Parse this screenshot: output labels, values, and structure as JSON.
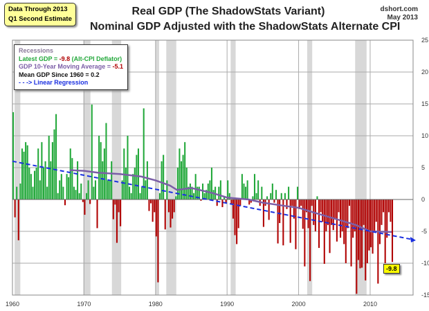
{
  "note": {
    "line1": "Data Through 2013",
    "line2": "Q1 Second Estimate"
  },
  "source": {
    "site": "dshort.com",
    "date": "May 2013"
  },
  "chart_data": {
    "type": "bar",
    "title": "Real GDP (The ShadowStats Variant)",
    "subtitle": "Nominal GDP Adjusted with the ShadowStats Alternate CPI",
    "xlabel": "",
    "ylabel": "",
    "xlim": [
      1960,
      2016
    ],
    "ylim": [
      -15,
      25
    ],
    "xticks": [
      "1960",
      "1970",
      "1980",
      "1990",
      "2000",
      "2010"
    ],
    "yticks": [
      "25",
      "20",
      "15",
      "10",
      "5",
      "0",
      "-5",
      "-10",
      "-15"
    ],
    "grid": true,
    "legend": {
      "placement": "top-left",
      "recessions": "Recessions",
      "latest_prefix": "Latest GDP = ",
      "latest_value": "-9.8",
      "latest_suffix": " (Alt-CPI Deflator)",
      "ma_prefix": "GDP 10-Year Moving Average = ",
      "ma_value": "-5.1",
      "mean": "Mean GDP  Since 1960 = 0.2",
      "regression": "- - -> Linear Regression"
    },
    "latest_label": "-9.8",
    "start_quarter": "1960Q1",
    "values": [
      13.7,
      -2.8,
      2.0,
      -6.4,
      2.5,
      8.0,
      7.5,
      9.0,
      8.5,
      5.0,
      4.0,
      2.0,
      4.5,
      5.0,
      8.0,
      3.0,
      9.0,
      5.0,
      6.0,
      2.0,
      10.0,
      6.0,
      9.0,
      11.0,
      13.4,
      1.0,
      3.0,
      4.0,
      2.0,
      -0.9,
      4.0,
      3.5,
      8.0,
      6.5,
      2.0,
      1.5,
      6.0,
      1.0,
      2.5,
      -0.4,
      -2.4,
      1.0,
      3.0,
      -0.7,
      14.9,
      2.0,
      3.0,
      -4.5,
      10.0,
      9.0,
      6.0,
      8.0,
      12.0,
      3.0,
      3.0,
      6.0,
      -3.1,
      -0.8,
      -6.8,
      -2.0,
      -4.2,
      3.0,
      8.0,
      5.0,
      10.0,
      2.0,
      1.0,
      4.0,
      5.0,
      7.0,
      8.0,
      1.0,
      2.0,
      14.3,
      3.0,
      6.0,
      -1.8,
      -0.6,
      -3.5,
      -2.0,
      -5.8,
      -13.0,
      1.0,
      6.0,
      7.0,
      -4.7,
      3.0,
      -2.0,
      -4.4,
      -3.0,
      -2.0,
      0.5,
      5.0,
      8.0,
      6.0,
      7.0,
      9.0,
      5.0,
      2.0,
      2.5,
      2.0,
      1.0,
      4.0,
      2.0,
      2.0,
      -0.2,
      2.5,
      1.0,
      1.5,
      2.5,
      3.0,
      5.0,
      1.5,
      2.0,
      -1.0,
      2.0,
      3.0,
      -1.2,
      0.5,
      -0.5,
      3.0,
      1.0,
      -0.8,
      -3.0,
      -5.6,
      -7.0,
      -4.5,
      -1.0,
      4.0,
      2.5,
      2.0,
      3.0,
      -0.8,
      -0.5,
      0.5,
      4.0,
      1.0,
      3.0,
      -1.0,
      2.0,
      -4.3,
      -1.0,
      0.5,
      -3.2,
      1.0,
      2.5,
      -0.5,
      1.5,
      -6.9,
      -3.7,
      1.0,
      -7.2,
      1.0,
      -1.5,
      2.0,
      -6.8,
      -1.0,
      -3.0,
      -7.8,
      2.0,
      -1.5,
      -1.0,
      -4.6,
      -10.5,
      -2.0,
      -4.5,
      -12.8,
      -1.0,
      -4.0,
      -5.0,
      0.5,
      -7.6,
      -2.0,
      -3.5,
      -10.1,
      -5.0,
      -4.0,
      -8.4,
      -4.0,
      -4.8,
      -3.0,
      -6.6,
      -2.0,
      -6.0,
      -5.0,
      -7.0,
      -10.0,
      -4.5,
      -1.0,
      -10.5,
      -6.0,
      -5.0,
      -14.8,
      -9.5,
      -10.8,
      -10.7,
      -4.0,
      -12.7,
      -10.0,
      -8.0,
      -7.5,
      -8.5,
      -5.0,
      -3.5,
      -13.2,
      -7.0,
      -4.0,
      -2.0,
      -10.0,
      -6.0,
      -2.0,
      -3.5,
      -9.8
    ],
    "moving_average": {
      "x": [
        1968,
        1970,
        1972,
        1975,
        1978,
        1980,
        1982,
        1983,
        1985,
        1988,
        1990,
        1993,
        1995,
        1998,
        2000,
        2002,
        2005,
        2008,
        2010,
        2013
      ],
      "y": [
        4.6,
        4.5,
        4.2,
        4.0,
        3.6,
        3.0,
        2.2,
        1.5,
        1.8,
        1.0,
        0.3,
        0.0,
        -0.5,
        -1.0,
        -1.3,
        -2.0,
        -3.0,
        -4.0,
        -5.0,
        -5.1
      ]
    },
    "regression": {
      "x": [
        1960,
        2016
      ],
      "y": [
        6.0,
        -6.3
      ]
    },
    "recessions": [
      [
        1960.3,
        1961.1
      ],
      [
        1969.9,
        1970.9
      ],
      [
        1973.9,
        1975.2
      ],
      [
        1980.0,
        1980.5
      ],
      [
        1981.5,
        1982.9
      ],
      [
        1990.5,
        1991.2
      ],
      [
        2001.2,
        2001.9
      ],
      [
        2007.9,
        2009.5
      ]
    ],
    "colors": {
      "positive": "#22a83a",
      "negative": "#b00000",
      "ma": "#7b5ea7",
      "regression": "#1a2fe0",
      "recession": "#d8d8d8"
    }
  }
}
